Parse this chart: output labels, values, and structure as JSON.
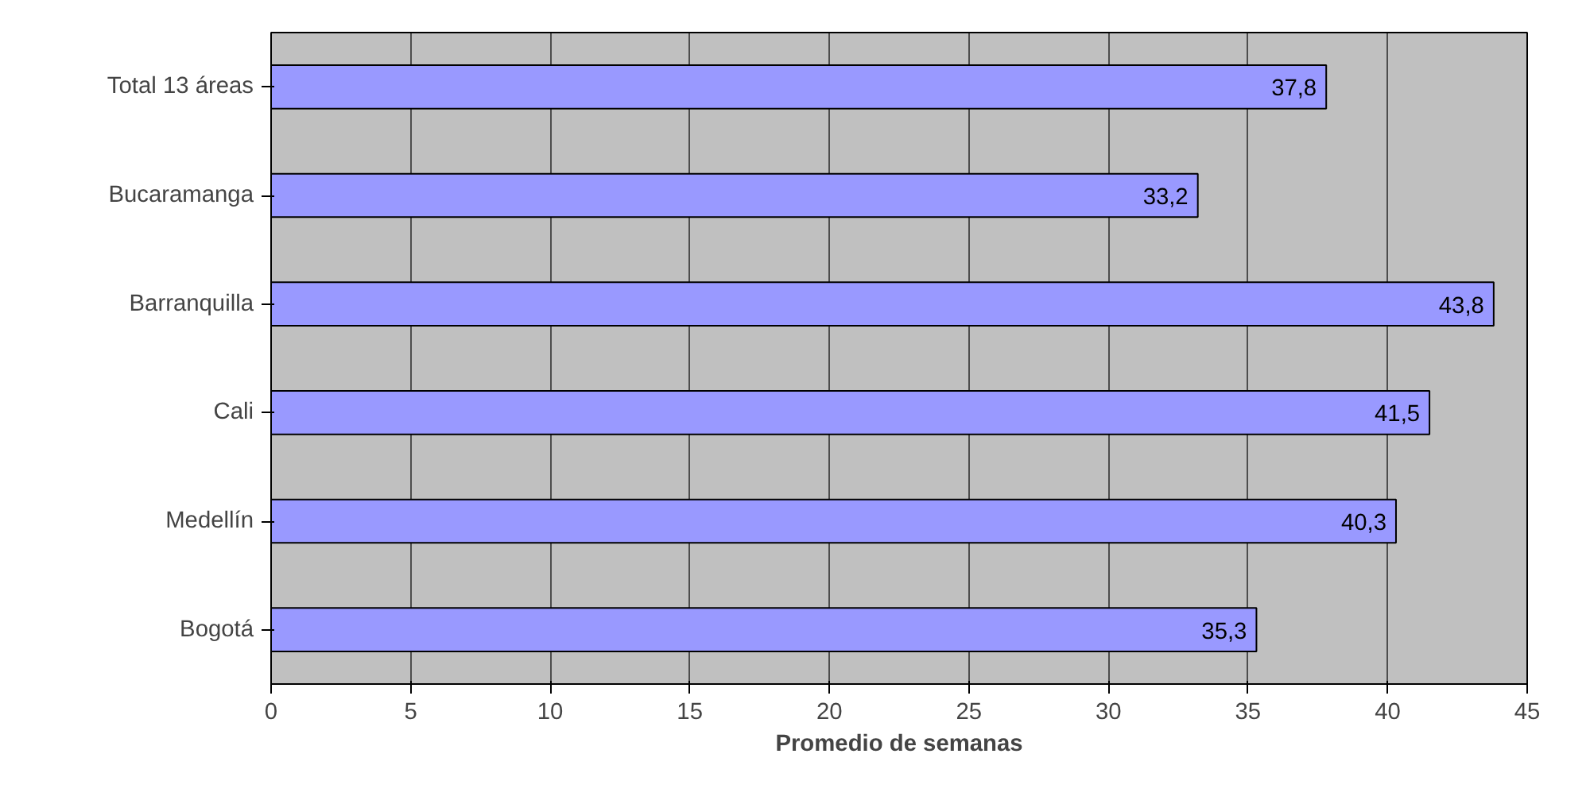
{
  "chart_data": {
    "type": "bar",
    "orientation": "horizontal",
    "xlabel": "Promedio de semanas",
    "categories": [
      "Total 13 áreas",
      "Bucaramanga",
      "Barranquilla",
      "Cali",
      "Medellín",
      "Bogotá"
    ],
    "values": [
      37.8,
      33.2,
      43.8,
      41.5,
      40.3,
      35.3
    ],
    "value_labels": [
      "37,8",
      "33,2",
      "43,8",
      "41,5",
      "40,3",
      "35,3"
    ],
    "color": "#9999ff",
    "xlim": [
      0,
      45
    ],
    "xticks": [
      0,
      5,
      10,
      15,
      20,
      25,
      30,
      35,
      40,
      45
    ],
    "grid": "x"
  }
}
